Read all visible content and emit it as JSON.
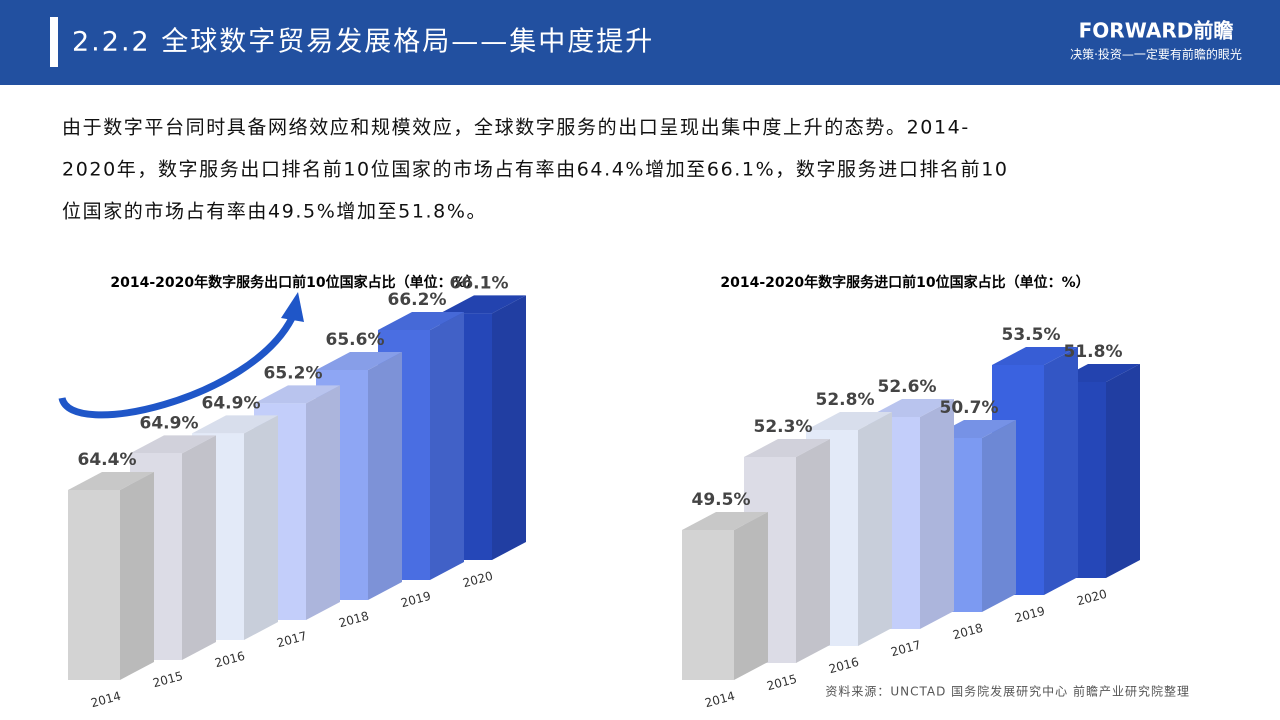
{
  "header": {
    "title": "2.2.2 全球数字贸易发展格局——集中度提升",
    "logo": "FORWARD前瞻",
    "slogan": "决策·投资—一定要有前瞻的眼光"
  },
  "body_lines": [
    "由于数字平台同时具备网络效应和规模效应，全球数字服务的出口呈现出集中度上升的态势。2014-",
    "2020年，数字服务出口排名前10位国家的市场占有率由64.4%增加至66.1%，数字服务进口排名前10",
    "位国家的市场占有率由49.5%增加至51.8%。"
  ],
  "source": "资料来源：UNCTAD 国务院发展研究中心 前瞻产业研究院整理",
  "chart_data": [
    {
      "type": "bar3d",
      "title": "2014-2020年数字服务出口前10位国家占比（单位：%）",
      "categories": [
        "2014",
        "2015",
        "2016",
        "2017",
        "2018",
        "2019",
        "2020"
      ],
      "values": [
        64.4,
        64.9,
        64.9,
        65.2,
        65.6,
        66.2,
        66.1
      ],
      "value_labels": [
        "64.4%",
        "64.9%",
        "64.9%",
        "65.2%",
        "65.6%",
        "66.2%",
        "66.1%"
      ],
      "colors": [
        "#d3d3d3",
        "#dcdce6",
        "#e3eaf8",
        "#c3cefa",
        "#8ea6f4",
        "#4a6ee2",
        "#2547b8"
      ]
    },
    {
      "type": "bar3d",
      "title": "2014-2020年数字服务进口前10位国家占比（单位：%）",
      "categories": [
        "2014",
        "2015",
        "2016",
        "2017",
        "2018",
        "2019",
        "2020"
      ],
      "values": [
        49.5,
        52.3,
        52.8,
        52.6,
        50.7,
        53.5,
        51.8
      ],
      "value_labels": [
        "49.5%",
        "52.3%",
        "52.8%",
        "52.6%",
        "50.7%",
        "53.5%",
        "51.8%"
      ],
      "colors": [
        "#d3d3d3",
        "#dcdce6",
        "#e3eaf8",
        "#c3cefa",
        "#7c9af2",
        "#3a62e0",
        "#2547b8"
      ]
    }
  ]
}
